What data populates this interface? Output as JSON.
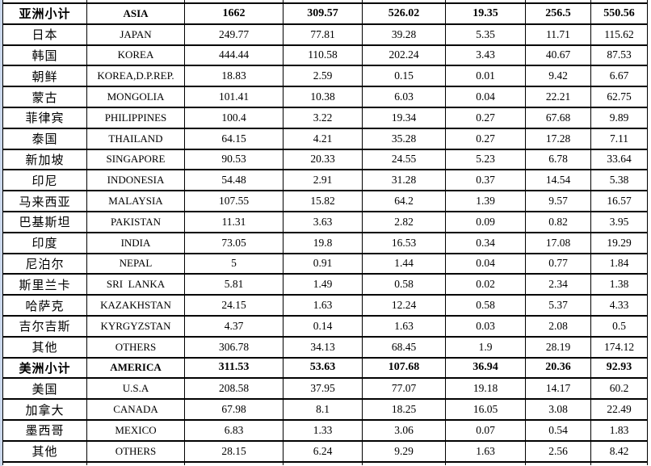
{
  "colors": {
    "edge_strip": "#cbd8ec",
    "table_border": "#000000",
    "background": "#ffffff",
    "text": "#000000"
  },
  "table": {
    "columns": [
      "region_name_zh",
      "region_name_en",
      "value_1",
      "value_2",
      "value_3",
      "value_4",
      "value_5",
      "value_6"
    ],
    "rows": [
      {
        "zh": "亚洲小计",
        "en": "ASIA",
        "values": [
          "1662",
          "309.57",
          "526.02",
          "19.35",
          "256.5",
          "550.56"
        ],
        "bold": true
      },
      {
        "zh": "日本",
        "en": "JAPAN",
        "values": [
          "249.77",
          "77.81",
          "39.28",
          "5.35",
          "11.71",
          "115.62"
        ],
        "bold": false
      },
      {
        "zh": "韩国",
        "en": "KOREA",
        "values": [
          "444.44",
          "110.58",
          "202.24",
          "3.43",
          "40.67",
          "87.53"
        ],
        "bold": false
      },
      {
        "zh": "朝鲜",
        "en": "KOREA,D.P.REP.",
        "values": [
          "18.83",
          "2.59",
          "0.15",
          "0.01",
          "9.42",
          "6.67"
        ],
        "bold": false
      },
      {
        "zh": "蒙古",
        "en": "MONGOLIA",
        "values": [
          "101.41",
          "10.38",
          "6.03",
          "0.04",
          "22.21",
          "62.75"
        ],
        "bold": false
      },
      {
        "zh": "菲律宾",
        "en": "PHILIPPINES",
        "values": [
          "100.4",
          "3.22",
          "19.34",
          "0.27",
          "67.68",
          "9.89"
        ],
        "bold": false
      },
      {
        "zh": "泰国",
        "en": "THAILAND",
        "values": [
          "64.15",
          "4.21",
          "35.28",
          "0.27",
          "17.28",
          "7.11"
        ],
        "bold": false
      },
      {
        "zh": "新加坡",
        "en": "SINGAPORE",
        "values": [
          "90.53",
          "20.33",
          "24.55",
          "5.23",
          "6.78",
          "33.64"
        ],
        "bold": false
      },
      {
        "zh": "印尼",
        "en": "INDONESIA",
        "values": [
          "54.48",
          "2.91",
          "31.28",
          "0.37",
          "14.54",
          "5.38"
        ],
        "bold": false
      },
      {
        "zh": "马来西亚",
        "en": "MALAYSIA",
        "values": [
          "107.55",
          "15.82",
          "64.2",
          "1.39",
          "9.57",
          "16.57"
        ],
        "bold": false
      },
      {
        "zh": "巴基斯坦",
        "en": "PAKISTAN",
        "values": [
          "11.31",
          "3.63",
          "2.82",
          "0.09",
          "0.82",
          "3.95"
        ],
        "bold": false
      },
      {
        "zh": "印度",
        "en": "INDIA",
        "values": [
          "73.05",
          "19.8",
          "16.53",
          "0.34",
          "17.08",
          "19.29"
        ],
        "bold": false
      },
      {
        "zh": "尼泊尔",
        "en": "NEPAL",
        "values": [
          "5",
          "0.91",
          "1.44",
          "0.04",
          "0.77",
          "1.84"
        ],
        "bold": false
      },
      {
        "zh": "斯里兰卡",
        "en": "SRI  LANKA",
        "values": [
          "5.81",
          "1.49",
          "0.58",
          "0.02",
          "2.34",
          "1.38"
        ],
        "bold": false
      },
      {
        "zh": "哈萨克",
        "en": "KAZAKHSTAN",
        "values": [
          "24.15",
          "1.63",
          "12.24",
          "0.58",
          "5.37",
          "4.33"
        ],
        "bold": false
      },
      {
        "zh": "吉尔吉斯",
        "en": "KYRGYZSTAN",
        "values": [
          "4.37",
          "0.14",
          "1.63",
          "0.03",
          "2.08",
          "0.5"
        ],
        "bold": false
      },
      {
        "zh": "其他",
        "en": "OTHERS",
        "values": [
          "306.78",
          "34.13",
          "68.45",
          "1.9",
          "28.19",
          "174.12"
        ],
        "bold": false
      },
      {
        "zh": "美洲小计",
        "en": "AMERICA",
        "values": [
          "311.53",
          "53.63",
          "107.68",
          "36.94",
          "20.36",
          "92.93"
        ],
        "bold": true
      },
      {
        "zh": "美国",
        "en": "U.S.A",
        "values": [
          "208.58",
          "37.95",
          "77.07",
          "19.18",
          "14.17",
          "60.2"
        ],
        "bold": false
      },
      {
        "zh": "加拿大",
        "en": "CANADA",
        "values": [
          "67.98",
          "8.1",
          "18.25",
          "16.05",
          "3.08",
          "22.49"
        ],
        "bold": false
      },
      {
        "zh": "墨西哥",
        "en": "MEXICO",
        "values": [
          "6.83",
          "1.33",
          "3.06",
          "0.07",
          "0.54",
          "1.83"
        ],
        "bold": false
      },
      {
        "zh": "其他",
        "en": "OTHERS",
        "values": [
          "28.15",
          "6.24",
          "9.29",
          "1.63",
          "2.56",
          "8.42"
        ],
        "bold": false
      }
    ]
  }
}
